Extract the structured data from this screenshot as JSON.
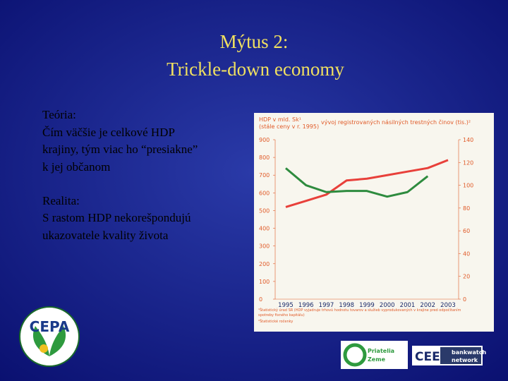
{
  "slide": {
    "title": [
      "Mýtus 2:",
      "Trickle-down economy"
    ],
    "theory": {
      "heading": "Teória:",
      "lines": [
        "Čím väčšie je celkové HDP",
        "krajiny, tým viac ho “presiakne”",
        "k jej občanom"
      ]
    },
    "reality": {
      "heading": "Realita:",
      "lines": [
        "S rastom HDP nekorešpondujú",
        "ukazovatele kvality života"
      ]
    },
    "logos": {
      "cepa": "CEPA",
      "friends": [
        "Priatelia",
        "Zeme"
      ],
      "cee": "CEE",
      "bankwatch": [
        "bankwatch",
        "network"
      ]
    }
  },
  "chart_data": {
    "type": "line",
    "y_title": [
      "HDP v mld. Sk¹",
      "(stále ceny v r. 1995)"
    ],
    "y2_title": "vývoj registrovaných násilných trestných činov (tis.)²",
    "footnotes": [
      "¹Štatistický úrad SR (HDP vyjadruje trhovú hodnotu tovarov a služieb vyprodukovaných v krajine pred odpočítaním",
      "spotreby fixného kapitálu)",
      "²Štatistické ročenky"
    ],
    "categories": [
      "1995",
      "1996",
      "1997",
      "1998",
      "1999",
      "2000",
      "2001",
      "2002",
      "2003"
    ],
    "series": [
      {
        "color": "#e8403a",
        "values": [
          520,
          555,
          590,
          670,
          680,
          700,
          720,
          740,
          785
        ]
      },
      {
        "color": "#2e8b3e",
        "axis": "y2",
        "values": [
          115,
          100,
          94,
          95,
          95,
          90,
          94,
          108,
          null
        ]
      }
    ],
    "ylim": [
      0,
      900
    ],
    "yticks": [
      0,
      100,
      200,
      300,
      400,
      500,
      600,
      700,
      800,
      900
    ],
    "y2lim": [
      0,
      140
    ],
    "y2ticks": [
      0,
      20,
      40,
      60,
      80,
      100,
      120,
      140
    ]
  }
}
